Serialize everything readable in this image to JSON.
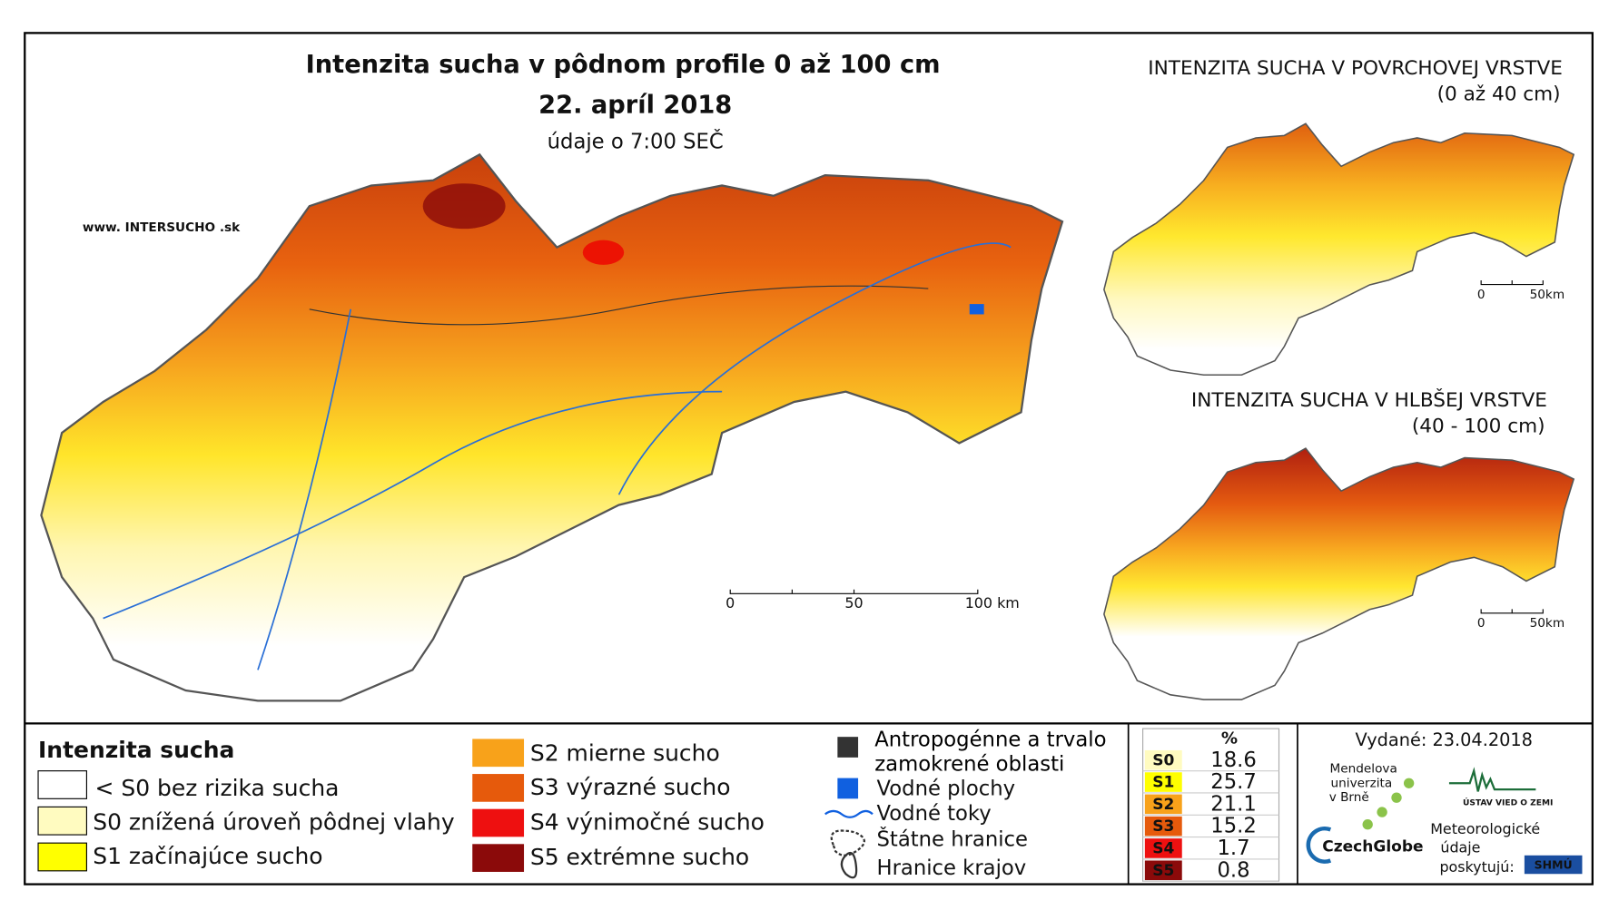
{
  "header": {
    "title": "Intenzita sucha v pôdnom profile 0 až 100 cm",
    "date": "22. apríl 2018",
    "data_time": "údaje o 7:00 SEČ",
    "website": "www. INTERSUCHO .sk"
  },
  "main_scale": [
    "0",
    "50",
    "100 km"
  ],
  "insets": [
    {
      "title": "INTENZITA SUCHA V POVRCHOVEJ VRSTVE",
      "subtitle": "(0 až 40 cm)",
      "scale": [
        "0",
        "50km"
      ]
    },
    {
      "title": "INTENZITA SUCHA V HLBŠEJ VRSTVE",
      "subtitle": "(40 - 100 cm)",
      "scale": [
        "0",
        "50km"
      ]
    }
  ],
  "legend": {
    "title": "Intenzita sucha",
    "items": [
      "< S0 bez rizika sucha",
      "S0 znížená úroveň pôdnej vlahy",
      "S1 začínajúce sucho",
      "S2 mierne sucho",
      "S3 výrazné sucho",
      "S4 výnimočné sucho",
      "S5 extrémne sucho"
    ],
    "other": [
      "Antropogénne a trvalo zamokrené oblasti",
      "Vodné plochy",
      "Vodné toky",
      "Štátne hranice",
      "Hranice krajov"
    ]
  },
  "table": {
    "header": "%",
    "rows": [
      [
        "S0",
        18.6
      ],
      [
        "S1",
        25.7
      ],
      [
        "S2",
        21.1
      ],
      [
        "S3",
        15.2
      ],
      [
        "S4",
        1.7
      ],
      [
        "S5",
        0.8
      ]
    ]
  },
  "footer": {
    "issued": "Vydané: 23.04.2018",
    "mendel": [
      "Mendelova",
      "univerzita",
      "v Brně"
    ],
    "czechglobe": "CzechGlobe",
    "ustav": "ÚSTAV VIED O ZEMI",
    "meteo": [
      "Meteorologické",
      "údaje",
      "poskytujú:"
    ],
    "shmu": "SHMÚ"
  }
}
